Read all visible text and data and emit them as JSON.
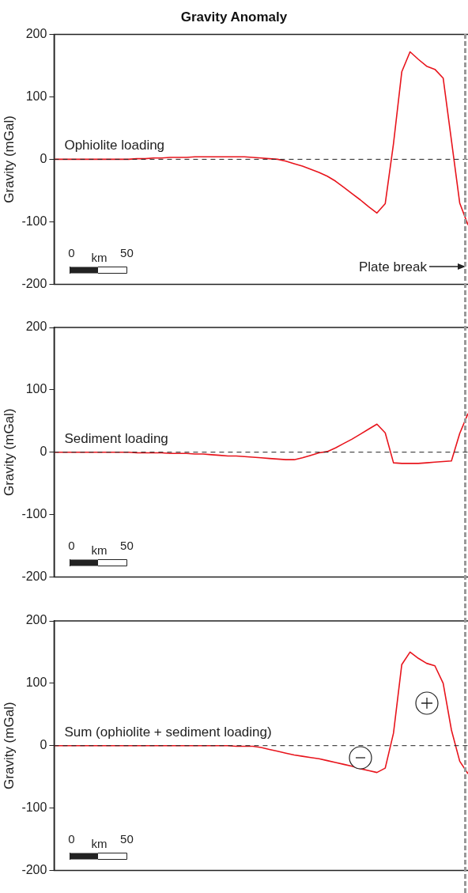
{
  "chart_data": [
    {
      "type": "line",
      "title": "Gravity Anomaly",
      "ylabel": "Gravity (mGal)",
      "categories": [
        null,
        null,
        null,
        null,
        null,
        null,
        null,
        null,
        null,
        null,
        null,
        null,
        null,
        null,
        null,
        null,
        null,
        null,
        null,
        null,
        null,
        null,
        null,
        null,
        null,
        null,
        null,
        null,
        null,
        null,
        null,
        null,
        null,
        null,
        null,
        null,
        null,
        null,
        null,
        null,
        null,
        null,
        null,
        null,
        null,
        null,
        null,
        null,
        null,
        null,
        null
      ],
      "series": [
        {
          "color": "#e8141c",
          "values": [
            0,
            0,
            0,
            0,
            0,
            0,
            0,
            0,
            0,
            0,
            1,
            1,
            2,
            2,
            3,
            3,
            3,
            4,
            4,
            4,
            4,
            4,
            4,
            4,
            3,
            2,
            1,
            0,
            -3,
            -7,
            -11,
            -16,
            -21,
            -27,
            -35,
            -45,
            -55,
            -65,
            -76,
            -86,
            -71,
            25,
            140,
            172,
            160,
            149,
            144,
            130,
            30,
            -70,
            -105
          ]
        }
      ],
      "ylim": [
        -200,
        200
      ],
      "yticks": [
        -200,
        -100,
        0,
        100,
        200
      ],
      "tick_labels": "y",
      "grid": false,
      "legend": false,
      "marker": "none",
      "ref_lines": [
        {
          "axis": "y",
          "value": 0,
          "line_style": "dashed",
          "color": "#222222"
        }
      ],
      "annotations": [
        "Ophiolite loading",
        "0",
        "km",
        "50",
        "Plate break"
      ]
    },
    {
      "type": "line",
      "ylabel": "Gravity (mGal)",
      "categories": [
        null,
        null,
        null,
        null,
        null,
        null,
        null,
        null,
        null,
        null,
        null,
        null,
        null,
        null,
        null,
        null,
        null,
        null,
        null,
        null,
        null,
        null,
        null,
        null,
        null,
        null,
        null,
        null,
        null,
        null,
        null,
        null,
        null,
        null,
        null,
        null,
        null,
        null,
        null,
        null,
        null,
        null,
        null,
        null,
        null,
        null,
        null,
        null,
        null,
        null,
        null
      ],
      "series": [
        {
          "color": "#e8141c",
          "values": [
            0,
            0,
            0,
            0,
            0,
            0,
            0,
            0,
            0,
            0,
            -1,
            -1,
            -1,
            -1,
            -2,
            -2,
            -2,
            -3,
            -3,
            -4,
            -5,
            -6,
            -6,
            -7,
            -8,
            -9,
            -10,
            -11,
            -12,
            -12,
            -9,
            -5,
            -1,
            1,
            7,
            14,
            21,
            29,
            37,
            45,
            31,
            -17,
            -18,
            -18,
            -18,
            -17,
            -16,
            -15,
            -14,
            30,
            62
          ]
        }
      ],
      "ylim": [
        -200,
        200
      ],
      "yticks": [
        -200,
        -100,
        0,
        100,
        200
      ],
      "tick_labels": "y",
      "grid": false,
      "legend": false,
      "marker": "none",
      "ref_lines": [
        {
          "axis": "y",
          "value": 0,
          "line_style": "dashed",
          "color": "#222222"
        }
      ],
      "annotations": [
        "Sediment loading",
        "0",
        "km",
        "50"
      ]
    },
    {
      "type": "line",
      "ylabel": "Gravity (mGal)",
      "categories": [
        null,
        null,
        null,
        null,
        null,
        null,
        null,
        null,
        null,
        null,
        null,
        null,
        null,
        null,
        null,
        null,
        null,
        null,
        null,
        null,
        null,
        null,
        null,
        null,
        null,
        null,
        null,
        null,
        null,
        null,
        null,
        null,
        null,
        null,
        null,
        null,
        null,
        null,
        null,
        null,
        null,
        null,
        null,
        null,
        null,
        null,
        null,
        null,
        null,
        null,
        null
      ],
      "series": [
        {
          "color": "#e8141c",
          "values": [
            0,
            0,
            0,
            0,
            0,
            0,
            0,
            0,
            0,
            0,
            0,
            0,
            0,
            0,
            0,
            0,
            0,
            0,
            0,
            0,
            0,
            0,
            -1,
            -1,
            -1,
            -3,
            -6,
            -9,
            -12,
            -15,
            -17,
            -19,
            -21,
            -24,
            -27,
            -30,
            -33,
            -37,
            -40,
            -43,
            -36,
            20,
            130,
            150,
            140,
            132,
            128,
            100,
            25,
            -25,
            -45
          ]
        }
      ],
      "ylim": [
        -200,
        200
      ],
      "yticks": [
        -200,
        -100,
        0,
        100,
        200
      ],
      "tick_labels": "y",
      "grid": false,
      "legend": false,
      "marker": "none",
      "ref_lines": [
        {
          "axis": "y",
          "value": 0,
          "line_style": "dashed",
          "color": "#222222"
        }
      ],
      "annotations": [
        "Sum (ophiolite + sediment loading)",
        "0",
        "km",
        "50"
      ]
    }
  ]
}
